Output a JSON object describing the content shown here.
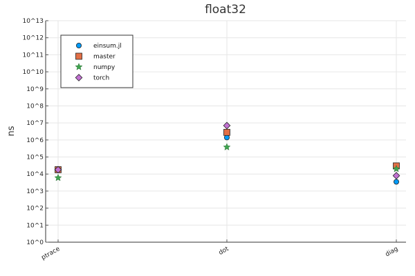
{
  "chart_data": {
    "type": "scatter",
    "title": "float32",
    "xlabel": "",
    "ylabel": "ns",
    "categories": [
      "ptrace",
      "dot",
      "diag"
    ],
    "y_scale": "log10",
    "ylim": [
      1,
      10000000000000.0
    ],
    "y_ticks": [
      {
        "value": 1,
        "label": "10^0"
      },
      {
        "value": 10,
        "label": "10^1"
      },
      {
        "value": 100,
        "label": "10^2"
      },
      {
        "value": 1000,
        "label": "10^3"
      },
      {
        "value": 10000,
        "label": "10^4"
      },
      {
        "value": 100000,
        "label": "10^5"
      },
      {
        "value": 1000000,
        "label": "10^6"
      },
      {
        "value": 10000000,
        "label": "10^7"
      },
      {
        "value": 100000000,
        "label": "10^8"
      },
      {
        "value": 1000000000,
        "label": "10^9"
      },
      {
        "value": 10000000000,
        "label": "10^10"
      },
      {
        "value": 100000000000,
        "label": "10^11"
      },
      {
        "value": 1000000000000,
        "label": "10^12"
      },
      {
        "value": 10000000000000,
        "label": "10^13"
      }
    ],
    "grid": true,
    "legend_position": "top-left",
    "series": [
      {
        "name": "einsum.jl",
        "marker": "circle",
        "color": "#009af9",
        "values": [
          18000,
          1400000,
          3500
        ]
      },
      {
        "name": "master",
        "marker": "square",
        "color": "#e26f46",
        "values": [
          18000,
          2800000,
          30000
        ]
      },
      {
        "name": "numpy",
        "marker": "star",
        "color": "#3ea44e",
        "values": [
          6000,
          380000,
          20000
        ]
      },
      {
        "name": "torch",
        "marker": "diamond",
        "color": "#c271d2",
        "values": [
          18000,
          7000000,
          8000
        ]
      }
    ]
  }
}
